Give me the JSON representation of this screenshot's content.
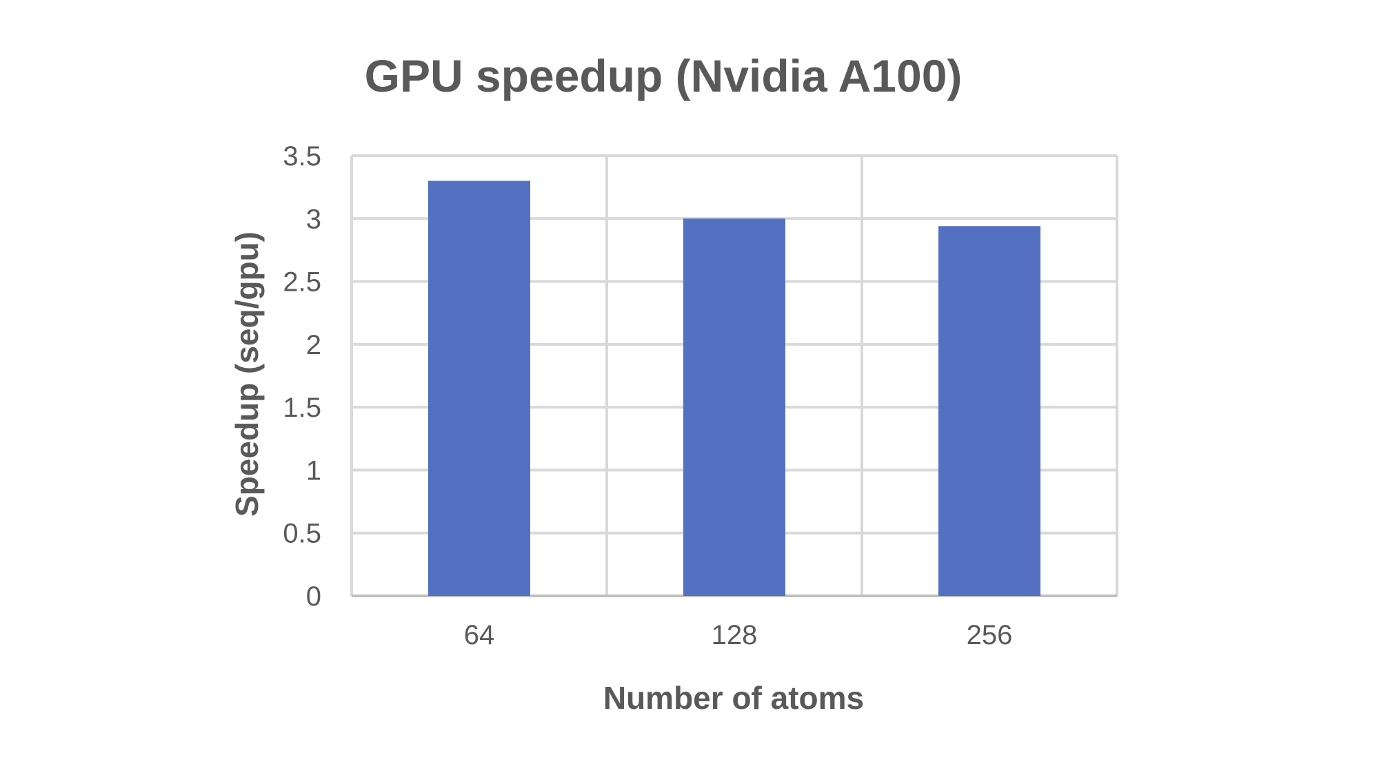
{
  "chart_data": {
    "type": "bar",
    "title": "GPU speedup (Nvidia A100)",
    "xlabel": "Number of atoms",
    "ylabel": "Speedup (seq/gpu)",
    "categories": [
      "64",
      "128",
      "256"
    ],
    "series": [
      {
        "values": [
          3.3,
          3.0,
          2.94
        ]
      }
    ],
    "ylim": [
      0,
      3.5
    ],
    "yticks": [
      0,
      0.5,
      1,
      1.5,
      2,
      2.5,
      3,
      3.5
    ],
    "ytick_labels": [
      "0",
      "0.5",
      "1",
      "1.5",
      "2",
      "2.5",
      "3",
      "3.5"
    ],
    "grid": true,
    "legend": "none",
    "bar_color": "#5470c1"
  }
}
